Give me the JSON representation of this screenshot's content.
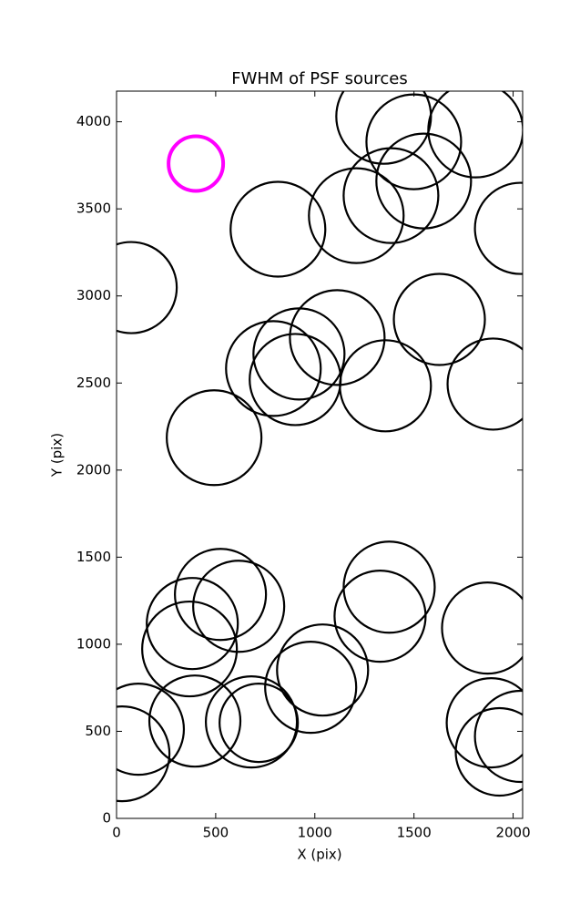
{
  "chart_data": {
    "type": "scatter",
    "title": "FWHM of PSF sources",
    "x_label": "X (pix)",
    "y_label": "Y (pix)",
    "xlim": [
      0,
      2048
    ],
    "ylim": [
      0,
      4176
    ],
    "xticks": [
      0,
      500,
      1000,
      1500,
      2000
    ],
    "yticks": [
      0,
      500,
      1000,
      1500,
      2000,
      2500,
      3000,
      3500,
      4000
    ],
    "series": [
      {
        "color": "#000000",
        "x": [
          74,
          814,
          1209,
          1384,
          1347,
          1499,
          1549,
          1811,
          2037,
          492,
          791,
          920,
          901,
          1113,
          1356,
          1628,
          1899,
          524,
          616,
          382,
          368,
          1375,
          1329,
          1871,
          1039,
          979,
          110,
          28,
          395,
          680,
          717,
          1890,
          1931,
          2037
        ],
        "values": [
          3048,
          3383,
          3461,
          3576,
          4031,
          3885,
          3660,
          3953,
          3388,
          2186,
          2583,
          2667,
          2520,
          2761,
          2484,
          2865,
          2494,
          1286,
          1218,
          1119,
          973,
          1328,
          1161,
          1093,
          852,
          753,
          512,
          371,
          559,
          554,
          549,
          549,
          382,
          471
        ],
        "sizes": [
          50,
          52,
          52,
          52,
          52,
          52,
          52,
          52,
          50,
          52,
          52,
          50,
          50,
          52,
          50,
          50,
          50,
          50,
          50,
          50,
          52,
          50,
          50,
          50,
          50,
          50,
          50,
          52,
          50,
          50,
          43,
          49,
          48,
          50
        ]
      },
      {
        "color": "#ff00ff",
        "x": [
          400
        ],
        "values": [
          3760
        ],
        "sizes": [
          30
        ]
      }
    ]
  }
}
